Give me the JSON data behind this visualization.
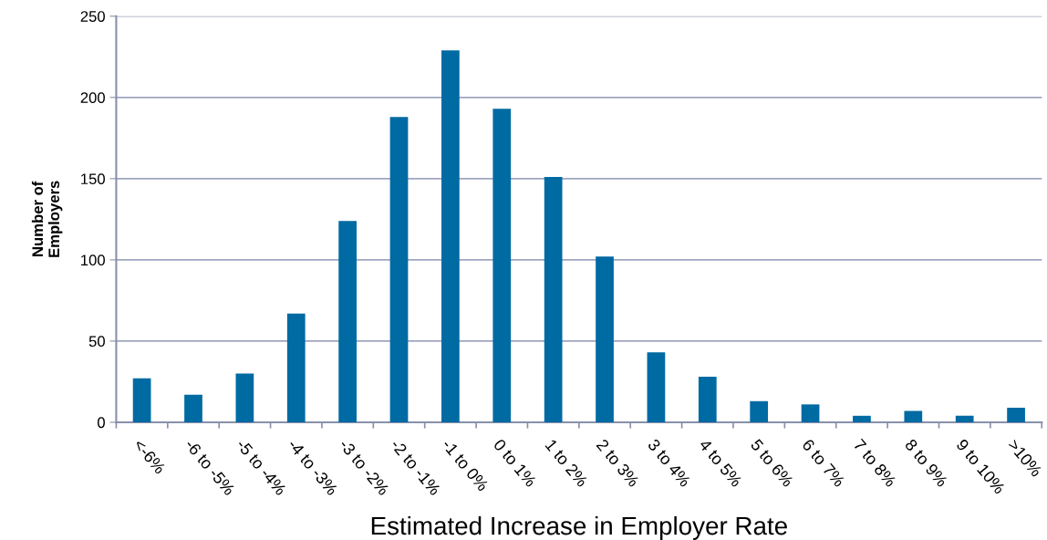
{
  "chart_data": {
    "type": "bar",
    "xlabel": "Estimated Increase in Employer Rate",
    "ylabel": "Number of\nEmployers",
    "categories": [
      "<-6%",
      "-6 to -5%",
      "-5 to -4%",
      "-4 to -3%",
      "-3 to -2%",
      "-2 to -1%",
      "-1 to 0%",
      "0 to 1%",
      "1 to 2%",
      "2 to 3%",
      "3 to 4%",
      "4 to 5%",
      "5 to 6%",
      "6 to 7%",
      "7 to 8%",
      "8 to 9%",
      "9 to 10%",
      ">10%"
    ],
    "values": [
      27,
      17,
      30,
      67,
      124,
      188,
      229,
      193,
      151,
      102,
      43,
      28,
      13,
      11,
      4,
      7,
      4,
      9
    ],
    "color": "#006aa3",
    "ylim": [
      0,
      250
    ],
    "yticks": [
      0,
      50,
      100,
      150,
      200,
      250
    ],
    "grid": "y",
    "legend": false
  }
}
